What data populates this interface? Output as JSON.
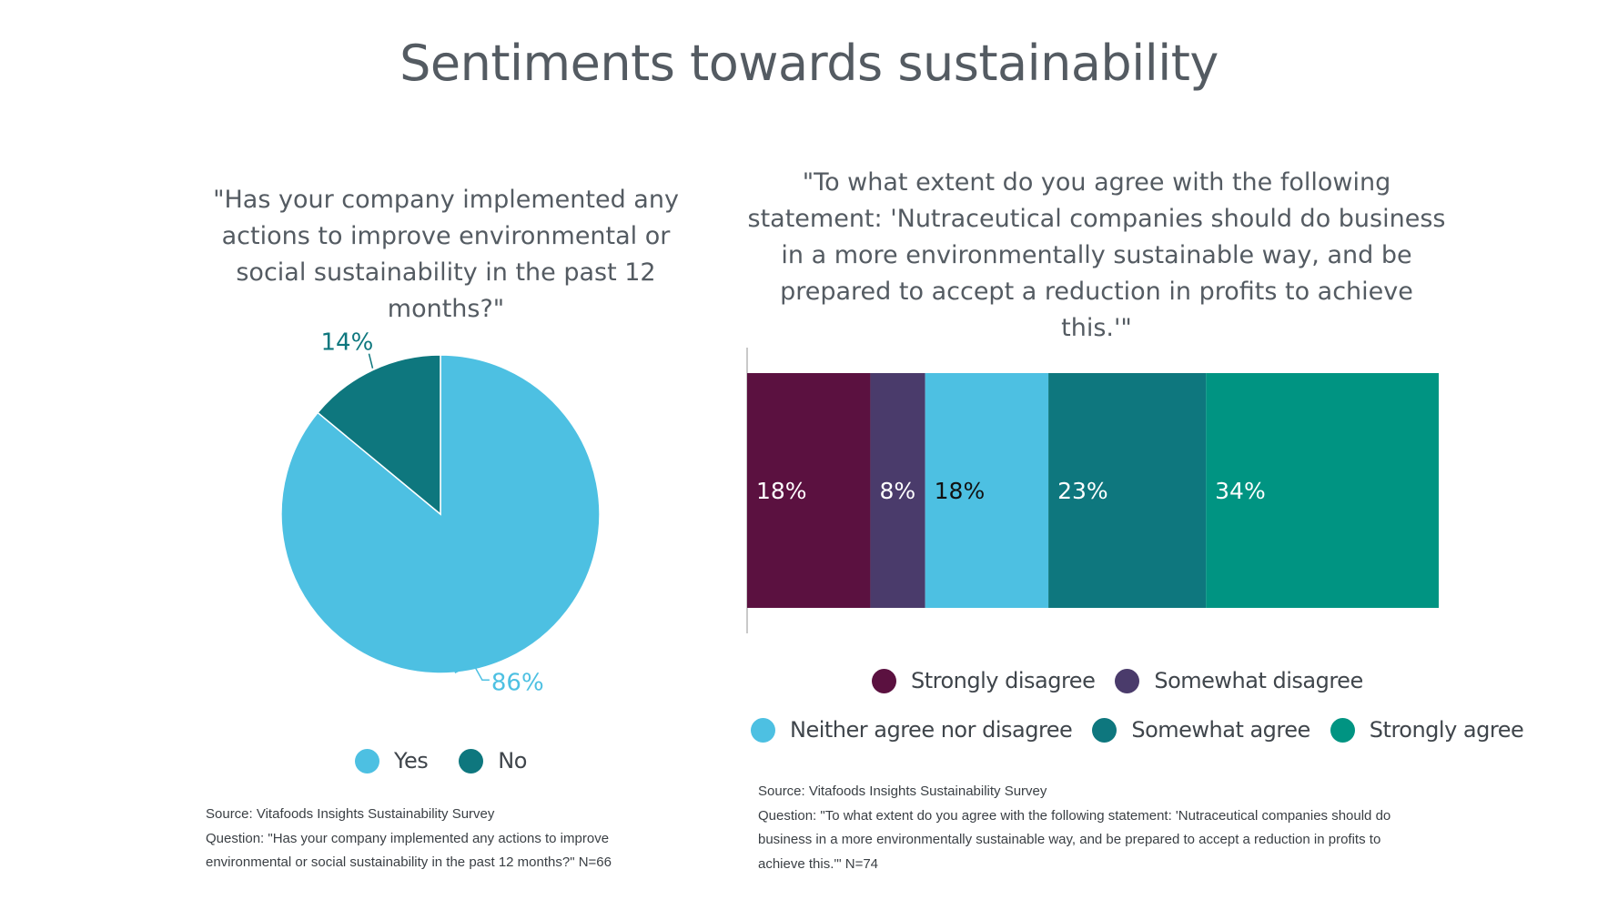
{
  "title": "Sentiments towards sustainability",
  "colors": {
    "yes": "#4dc0e2",
    "no": "#0e777e",
    "strongly_disagree": "#5b1140",
    "somewhat_disagree": "#4a3b6b",
    "neither": "#4dc0e2",
    "somewhat_agree": "#0e777e",
    "strongly_agree": "#009482"
  },
  "pie": {
    "question": "\"Has your company implemented any actions to improve environmental or social sustainability in the past 12 months?\"",
    "legend": [
      {
        "label": "Yes",
        "color": "#4dc0e2"
      },
      {
        "label": "No",
        "color": "#0e777e"
      }
    ],
    "source": "Source: Vitafoods Insights Sustainability Survey",
    "source_question": "Question: \"Has your company implemented any actions to improve environmental or social sustainability in the past 12 months?\" N=66"
  },
  "bar": {
    "question": "\"To what extent do you agree with the following statement: 'Nutraceutical companies should do business in a more environmentally sustainable way, and be prepared to accept a reduction in profits to achieve this.'\"",
    "legend_row1": [
      {
        "label": "Strongly disagree",
        "color": "#5b1140"
      },
      {
        "label": "Somewhat disagree",
        "color": "#4a3b6b"
      }
    ],
    "legend_row2": [
      {
        "label": "Neither agree nor disagree",
        "color": "#4dc0e2"
      },
      {
        "label": "Somewhat agree",
        "color": "#0e777e"
      },
      {
        "label": "Strongly agree",
        "color": "#009482"
      }
    ],
    "source": "Source: Vitafoods Insights Sustainability Survey",
    "source_question": "Question: \"To what extent do you agree with the following statement: 'Nutraceutical companies should do business in a more environmentally sustainable way, and be prepared to accept a reduction in profits to achieve this.'\" N=74"
  },
  "chart_data": [
    {
      "type": "pie",
      "title": "\"Has your company implemented any actions to improve environmental or social sustainability in the past 12 months?\"",
      "labels": [
        "Yes",
        "No"
      ],
      "values": [
        86,
        14
      ],
      "data_labels": [
        "86%",
        "14%"
      ],
      "colors": [
        "#4dc0e2",
        "#0e777e"
      ],
      "legend": "bottom"
    },
    {
      "type": "bar",
      "orientation": "horizontal-stacked",
      "title": "\"To what extent do you agree with the following statement: 'Nutraceutical companies should do business in a more environmentally sustainable way, and be prepared to accept a reduction in profits to achieve this.'\"",
      "series": [
        {
          "name": "Strongly disagree",
          "values": [
            18
          ],
          "label": "18%",
          "color": "#5b1140",
          "label_color": "#ffffff"
        },
        {
          "name": "Somewhat disagree",
          "values": [
            8
          ],
          "label": "8%",
          "color": "#4a3b6b",
          "label_color": "#ffffff"
        },
        {
          "name": "Neither agree nor disagree",
          "values": [
            18
          ],
          "label": "18%",
          "color": "#4dc0e2",
          "label_color": "#111111"
        },
        {
          "name": "Somewhat agree",
          "values": [
            23
          ],
          "label": "23%",
          "color": "#0e777e",
          "label_color": "#ffffff"
        },
        {
          "name": "Strongly agree",
          "values": [
            34
          ],
          "label": "34%",
          "color": "#009482",
          "label_color": "#ffffff"
        }
      ],
      "legend": "bottom"
    }
  ]
}
